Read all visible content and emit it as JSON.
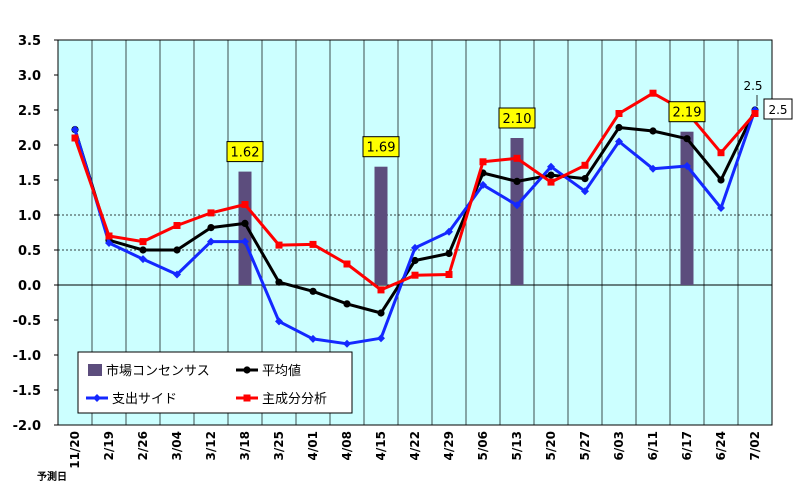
{
  "chart_data": {
    "type": "bar+line",
    "categories": [
      "11/20",
      "2/19",
      "2/26",
      "3/04",
      "3/12",
      "3/18",
      "3/25",
      "4/01",
      "4/08",
      "4/15",
      "4/22",
      "4/29",
      "5/06",
      "5/13",
      "5/20",
      "5/27",
      "6/03",
      "6/11",
      "6/17",
      "6/24",
      "7/02"
    ],
    "x_axis_note": "予測日",
    "ylim": [
      -2.0,
      3.5
    ],
    "ytick_step": 0.5,
    "ytick_labels": [
      "3.5",
      "3.0",
      "2.5",
      "2.0",
      "1.5",
      "1.0",
      "0.5",
      "0.0",
      "-0.5",
      "-1.0",
      "-1.5",
      "-2.0"
    ],
    "grid": {
      "vertical": true,
      "dashed_horizontal": [
        0.5,
        1.0
      ]
    },
    "background_color": "#ccffff",
    "series": [
      {
        "name": "市場コンセンサス",
        "type": "bar",
        "color": "#5c4d7d",
        "values": [
          null,
          null,
          null,
          null,
          null,
          1.62,
          null,
          null,
          null,
          1.69,
          null,
          null,
          null,
          2.1,
          null,
          null,
          null,
          null,
          2.19,
          null,
          null
        ]
      },
      {
        "name": "平均値",
        "type": "line",
        "color": "#000000",
        "marker": "circle",
        "values": [
          2.22,
          0.64,
          0.5,
          0.5,
          0.82,
          0.88,
          0.04,
          -0.09,
          -0.27,
          -0.4,
          0.35,
          0.45,
          1.6,
          1.48,
          1.57,
          1.52,
          2.25,
          2.2,
          2.09,
          1.5,
          2.5
        ]
      },
      {
        "name": "支出サイド",
        "type": "line",
        "color": "#1428ff",
        "marker": "diamond",
        "values": [
          2.22,
          0.6,
          0.37,
          0.15,
          0.62,
          0.62,
          -0.52,
          -0.77,
          -0.84,
          -0.76,
          0.53,
          0.76,
          1.43,
          1.14,
          1.69,
          1.34,
          2.05,
          1.66,
          1.7,
          1.1,
          2.5
        ]
      },
      {
        "name": "主成分分析",
        "type": "line",
        "color": "#ff0000",
        "marker": "square",
        "values": [
          2.1,
          0.7,
          0.62,
          0.85,
          1.03,
          1.15,
          0.57,
          0.58,
          0.3,
          -0.07,
          0.14,
          0.15,
          1.76,
          1.81,
          1.47,
          1.71,
          2.45,
          2.74,
          2.47,
          1.89,
          2.45
        ]
      }
    ],
    "data_labels": [
      {
        "text": "1.62",
        "category_index": 5,
        "value": 1.62
      },
      {
        "text": "1.69",
        "category_index": 9,
        "value": 1.69
      },
      {
        "text": "2.10",
        "category_index": 13,
        "value": 2.1
      },
      {
        "text": "2.19",
        "category_index": 18,
        "value": 2.19
      }
    ],
    "end_labels": [
      {
        "text": "2.5",
        "category_index": 20,
        "value": 2.5,
        "boxed": false
      },
      {
        "text": "2.5",
        "category_index": 20,
        "value": 2.5,
        "boxed": true
      }
    ],
    "legend": {
      "position": "bottom-left",
      "items": [
        "市場コンセンサス",
        "平均値",
        "支出サイド",
        "主成分分析"
      ]
    }
  }
}
